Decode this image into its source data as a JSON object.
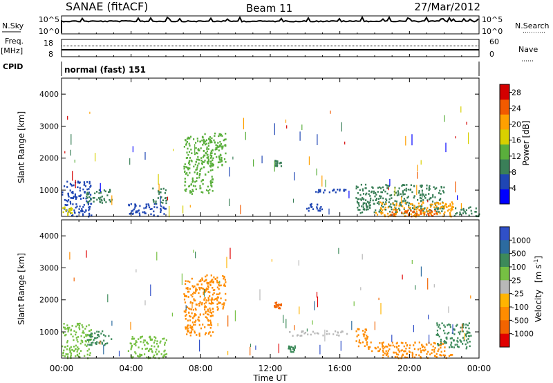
{
  "header": {
    "station": "SANAE (fitACF)",
    "beam": "Beam 11",
    "date": "27/Mar/2012"
  },
  "strips": {
    "nsky": {
      "label": "N.Sky",
      "ticks": [
        "10^5",
        "10^0"
      ]
    },
    "nsearch": {
      "label": "N.Search",
      "ticks": [
        "10^5",
        "10^0"
      ]
    },
    "freq": {
      "label": "Freq.",
      "units": "[MHz]",
      "ticks": [
        "18",
        "8"
      ],
      "level": 12
    },
    "nave": {
      "label": "Nave",
      "ticks": [
        "60",
        "0"
      ],
      "level": 40
    },
    "cpid": {
      "label": "CPID",
      "text": "normal (fast) 151"
    }
  },
  "x_axis": {
    "title": "Time UT",
    "range_hours": [
      0,
      24
    ],
    "ticks": [
      "00:00",
      "04:00",
      "08:00",
      "12:00",
      "16:00",
      "20:00",
      "00:00"
    ]
  },
  "colors": {
    "power": [
      "#0000ff",
      "#1f46b4",
      "#3a7f58",
      "#5aaf3c",
      "#d8d000",
      "#ffa000",
      "#f25a00",
      "#d40000"
    ],
    "velocity": [
      "#3050c8",
      "#2c6ba0",
      "#3d8a5a",
      "#76c043",
      "#b8b8b8",
      "#ffb400",
      "#ff8c00",
      "#f26400",
      "#e00000"
    ]
  },
  "chart_data": [
    {
      "type": "heatmap",
      "panel": "power",
      "ylabel": "Slant Range [km]",
      "ylim": [
        180,
        4500
      ],
      "yticks": [
        1000,
        2000,
        3000,
        4000
      ],
      "colorbar_label": "Power [dB]",
      "colorbar_ticks": [
        "4",
        "8",
        "12",
        "16",
        "20",
        "24",
        "28"
      ],
      "colorbar_range": [
        0,
        30
      ],
      "regions": [
        {
          "t": [
            0.0,
            1.7
          ],
          "r": [
            200,
            1300
          ],
          "value": 6
        },
        {
          "t": [
            0.0,
            0.6
          ],
          "r": [
            250,
            500
          ],
          "value": 16
        },
        {
          "t": [
            1.4,
            2.9
          ],
          "r": [
            600,
            1050
          ],
          "value": 9
        },
        {
          "t": [
            3.8,
            6.0
          ],
          "r": [
            200,
            600
          ],
          "value": 5
        },
        {
          "t": [
            5.2,
            6.0
          ],
          "r": [
            600,
            1100
          ],
          "value": 11
        },
        {
          "t": [
            7.0,
            8.7
          ],
          "r": [
            900,
            2700
          ],
          "value": 12
        },
        {
          "t": [
            8.2,
            9.4
          ],
          "r": [
            1700,
            2800
          ],
          "value": 14
        },
        {
          "t": [
            12.2,
            12.6
          ],
          "r": [
            1750,
            1950
          ],
          "value": 8
        },
        {
          "t": [
            14.5,
            16.4
          ],
          "r": [
            950,
            1050
          ],
          "value": 5
        },
        {
          "t": [
            14.0,
            15.0
          ],
          "r": [
            380,
            600
          ],
          "value": 6
        },
        {
          "t": [
            16.9,
            22.0
          ],
          "r": [
            300,
            1200
          ],
          "value": 10
        },
        {
          "t": [
            18.0,
            22.5
          ],
          "r": [
            200,
            650
          ],
          "value": 19
        },
        {
          "t": [
            18.8,
            21.6
          ],
          "r": [
            200,
            420
          ],
          "value": 26
        },
        {
          "t": [
            22.5,
            24.0
          ],
          "r": [
            200,
            500
          ],
          "value": 8
        }
      ]
    },
    {
      "type": "heatmap",
      "panel": "velocity",
      "ylabel": "Slant Range [km]",
      "ylim": [
        180,
        4500
      ],
      "yticks": [
        1000,
        2000,
        3000,
        4000
      ],
      "colorbar_label": "Velocity [m s^-1]",
      "colorbar_ticks": [
        "1000",
        "500",
        "100",
        "25",
        "-25",
        "-100",
        "-500",
        "-1000"
      ],
      "regions": [
        {
          "t": [
            0.0,
            1.7
          ],
          "r": [
            200,
            1300
          ],
          "value": 80
        },
        {
          "t": [
            1.4,
            2.9
          ],
          "r": [
            600,
            1050
          ],
          "value": 150
        },
        {
          "t": [
            3.8,
            6.0
          ],
          "r": [
            200,
            900
          ],
          "value": 60
        },
        {
          "t": [
            7.0,
            8.7
          ],
          "r": [
            900,
            2700
          ],
          "value": -120
        },
        {
          "t": [
            8.2,
            9.4
          ],
          "r": [
            1700,
            2800
          ],
          "value": -200
        },
        {
          "t": [
            12.2,
            12.6
          ],
          "r": [
            1750,
            1950
          ],
          "value": -600
        },
        {
          "t": [
            13.0,
            16.4
          ],
          "r": [
            900,
            1050
          ],
          "value": 0
        },
        {
          "t": [
            13.0,
            13.4
          ],
          "r": [
            400,
            600
          ],
          "value": 150
        },
        {
          "t": [
            16.9,
            17.6
          ],
          "r": [
            500,
            1200
          ],
          "value": -300
        },
        {
          "t": [
            17.6,
            22.0
          ],
          "r": [
            400,
            700
          ],
          "value": -400
        },
        {
          "t": [
            18.3,
            22.5
          ],
          "r": [
            200,
            450
          ],
          "value": -150
        },
        {
          "t": [
            21.5,
            23.5
          ],
          "r": [
            500,
            1300
          ],
          "value": 120
        }
      ]
    }
  ]
}
